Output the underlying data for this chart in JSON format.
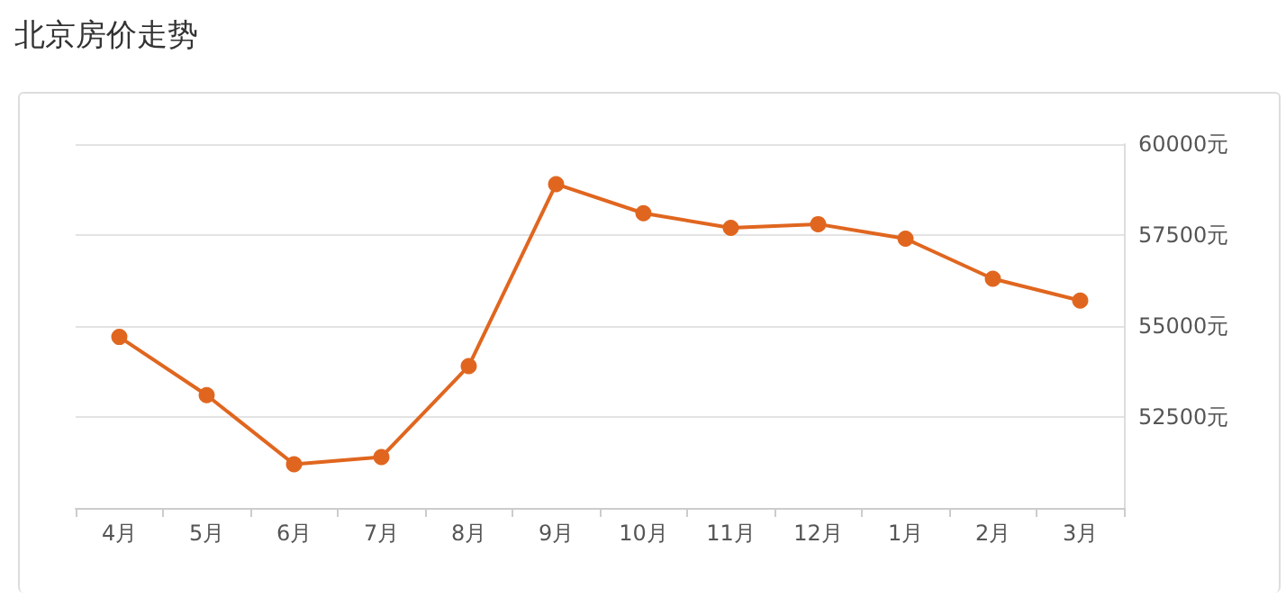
{
  "chart_data": {
    "type": "line",
    "title": "北京房价走势",
    "categories": [
      "4月",
      "5月",
      "6月",
      "7月",
      "8月",
      "9月",
      "10月",
      "11月",
      "12月",
      "1月",
      "2月",
      "3月"
    ],
    "series": [
      {
        "color": "#e0661f",
        "values": [
          54700,
          53100,
          51200,
          51400,
          53900,
          58900,
          58100,
          57700,
          57800,
          57400,
          56300,
          55700
        ]
      }
    ],
    "ylim": [
      50000,
      60000
    ],
    "yticks": [
      {
        "value": 50000,
        "label": null
      },
      {
        "value": 52500,
        "label": "52500元"
      },
      {
        "value": 55000,
        "label": "55000元"
      },
      {
        "value": 57500,
        "label": "57500元"
      },
      {
        "value": 60000,
        "label": "60000元"
      }
    ],
    "grid": "y",
    "marker": "circle",
    "line_style": "solid"
  }
}
